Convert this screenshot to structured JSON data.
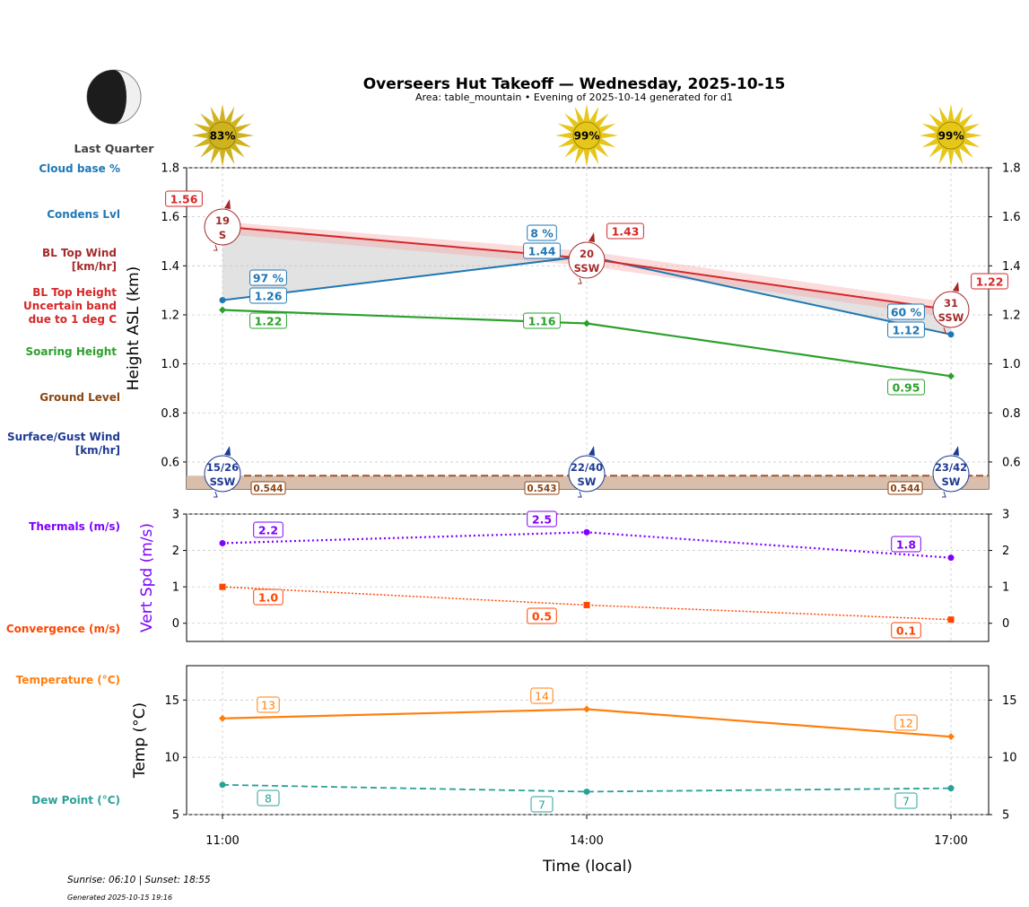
{
  "header": {
    "title": "Overseers Hut Takeoff — Wednesday, 2025-10-15",
    "subtitle": "Area: table_mountain • Evening of 2025-10-14 generated for d1",
    "moon_phase": "Last Quarter"
  },
  "footer": {
    "sun_times": "Sunrise: 06:10 | Sunset: 18:55",
    "generated": "Generated 2025-10-15 19:16"
  },
  "colors": {
    "cloud": "#1f77b4",
    "condens": "#1f77b4",
    "bl_wind": "#a52a2a",
    "bl_height": "#d62728",
    "soaring": "#2ca02c",
    "ground": "#8b4513",
    "surface_wind": "#1f3a93",
    "thermals": "#7f00ff",
    "convergence": "#ff4500",
    "temperature": "#ff7f0e",
    "dewpoint": "#2aa198"
  },
  "chart_data": [
    {
      "type": "line",
      "name": "height_panel",
      "ylabel": "Height ASL (km)",
      "ylim": [
        0.49,
        1.8
      ],
      "yticks": [
        "0.6",
        "0.8",
        "1.0",
        "1.2",
        "1.4",
        "1.6",
        "1.8"
      ],
      "x": [
        "11:00",
        "14:00",
        "17:00"
      ],
      "side_labels": {
        "cloud": "Cloud base %",
        "condens": "Condens Lvl",
        "bl_wind_1": "BL Top Wind",
        "bl_wind_2": "[km/hr]",
        "bl_height_1": "BL Top Height",
        "bl_height_2": "Uncertain band",
        "bl_height_3": "due to 1 deg C",
        "soaring": "Soaring Height",
        "ground": "Ground Level",
        "surface_1": "Surface/Gust Wind",
        "surface_2": "[km/hr]"
      },
      "bl_top_height": {
        "values": [
          1.56,
          1.43,
          1.22
        ],
        "labels": [
          "1.56",
          "1.43",
          "1.22"
        ],
        "band_upper": [
          1.58,
          1.46,
          1.25
        ],
        "band_lower": [
          1.53,
          1.4,
          1.19
        ]
      },
      "condensation_level": {
        "values": [
          1.26,
          1.44,
          1.12
        ],
        "labels": [
          "1.26",
          "1.44",
          "1.12"
        ]
      },
      "cloud_base_pct": [
        "97 %",
        "8 %",
        "60 %"
      ],
      "soaring_height": {
        "values": [
          1.22,
          1.165,
          0.95
        ],
        "labels": [
          "1.22",
          "1.16",
          "0.95"
        ]
      },
      "ground_level": {
        "values": [
          0.544,
          0.543,
          0.544
        ],
        "labels": [
          "0.544",
          "0.543",
          "0.544"
        ]
      },
      "bl_top_wind": [
        {
          "speed": "19",
          "dir": "S"
        },
        {
          "speed": "20",
          "dir": "SSW"
        },
        {
          "speed": "31",
          "dir": "SSW"
        }
      ],
      "surface_wind": [
        {
          "speed": "15/26",
          "dir": "SSW"
        },
        {
          "speed": "22/40",
          "dir": "SW"
        },
        {
          "speed": "23/42",
          "dir": "SW"
        }
      ],
      "sun_pct": [
        "83%",
        "99%",
        "99%"
      ]
    },
    {
      "type": "line",
      "name": "vertical_speed_panel",
      "ylabel": "Vert Spd (m/s)",
      "ylim": [
        -0.5,
        3
      ],
      "yticks": [
        "0",
        "1",
        "2",
        "3"
      ],
      "x": [
        "11:00",
        "14:00",
        "17:00"
      ],
      "side_labels": {
        "thermals": "Thermals (m/s)",
        "convergence": "Convergence (m/s)"
      },
      "thermals": {
        "values": [
          2.2,
          2.5,
          1.8
        ],
        "labels": [
          "2.2",
          "2.5",
          "1.8"
        ]
      },
      "convergence": {
        "values": [
          1.0,
          0.5,
          0.1
        ],
        "labels": [
          "1.0",
          "0.5",
          "0.1"
        ]
      }
    },
    {
      "type": "line",
      "name": "temperature_panel",
      "ylabel": "Temp (°C)",
      "xlabel": "Time (local)",
      "ylim": [
        5,
        18
      ],
      "yticks": [
        "5",
        "10",
        "15"
      ],
      "x": [
        "11:00",
        "14:00",
        "17:00"
      ],
      "side_labels": {
        "temperature": "Temperature (°C)",
        "dewpoint": "Dew Point (°C)"
      },
      "temperature": {
        "values": [
          13.4,
          14.2,
          11.8
        ],
        "labels": [
          "13",
          "14",
          "12"
        ]
      },
      "dewpoint": {
        "values": [
          7.6,
          7.0,
          7.3
        ],
        "labels": [
          "8",
          "7",
          "7"
        ]
      }
    }
  ]
}
